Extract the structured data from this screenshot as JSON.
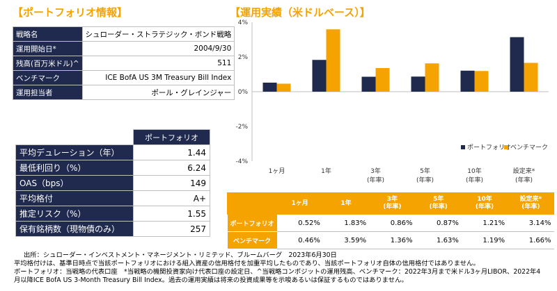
{
  "portfolio_heading": "【ポートフォリオ情報】",
  "chart_heading": "【運用実績（米ドルベース）】",
  "info_rows": [
    {
      "label": "戦略名",
      "value": "シュローダー・ストラテジック・ボンド戦略"
    },
    {
      "label": "運用開始日*",
      "value": "2004/9/30"
    },
    {
      "label": "残高(百万米ドル)^",
      "value": "511"
    },
    {
      "label": "ベンチマーク",
      "value": "ICE BofA US 3M Treasury Bill Index"
    },
    {
      "label": "運用担当者",
      "value": "ポール・グレインジャー"
    }
  ],
  "characteristics": {
    "header": "ポートフォリオ",
    "rows": [
      {
        "label": "平均デュレーション（年）",
        "value": "1.44"
      },
      {
        "label": "最低利回り（%）",
        "value": "6.24"
      },
      {
        "label": "OAS（bps）",
        "value": "149"
      },
      {
        "label": "平均格付",
        "value": "A+"
      },
      {
        "label": "推定リスク（%）",
        "value": "1.55"
      },
      {
        "label": "保有銘柄数（現物債のみ）",
        "value": "257"
      }
    ]
  },
  "chart_data": {
    "type": "bar",
    "categories": [
      [
        "1ヶ月"
      ],
      [
        "1年"
      ],
      [
        "3年",
        "(年率)"
      ],
      [
        "5年",
        "(年率)"
      ],
      [
        "10年",
        "(年率)"
      ],
      [
        "設定来*",
        "(年率)"
      ]
    ],
    "series": [
      {
        "name": "ポートフォリオ",
        "color": "#1F2A4E",
        "values": [
          0.52,
          1.83,
          0.86,
          0.87,
          1.21,
          3.14
        ]
      },
      {
        "name": "ベンチマーク",
        "color": "#F5A300",
        "values": [
          0.46,
          3.59,
          1.36,
          1.63,
          1.19,
          1.66
        ]
      }
    ],
    "yticks": [
      "4%",
      "2%",
      "0%",
      "-2%",
      "-4%"
    ],
    "ylim": [
      -4,
      4
    ],
    "legend": "bottom-right",
    "grid": false
  },
  "perf_table": {
    "columns": [
      [
        "1ヶ月"
      ],
      [
        "1年"
      ],
      [
        "3年",
        "(年率)"
      ],
      [
        "5年",
        "(年率)"
      ],
      [
        "10年",
        "(年率)"
      ],
      [
        "設定来*",
        "(年率)"
      ]
    ],
    "rows": [
      {
        "label": "ポートフォリオ",
        "values": [
          "0.52%",
          "1.83%",
          "0.86%",
          "0.87%",
          "1.21%",
          "3.14%"
        ]
      },
      {
        "label": "ベンチマーク",
        "values": [
          "0.46%",
          "3.59%",
          "1.36%",
          "1.63%",
          "1.19%",
          "1.66%"
        ]
      }
    ]
  },
  "notes": [
    "出所：シュローダー・インベストメント・マネージメント・リミテッド、ブルームバーグ　2023年6月30日",
    "平均格付けは、基準日時点で当該ポートフォリオにおける組入資産の信用格付を加重平均したものであり、当該ポートフォリオ自体の信用格付ではありません。",
    "ポートフォリオ：当戦略の代表口座　*当戦略の機関投資家向け代表口座の設定日、^当戦略コンポジットの運用残高、ベンチマーク：2022年3月まで米ドル3ヶ月LIBOR、2022年4",
    "月以降ICE BofA US 3-Month Treasury Bill Index。過去の運用実績は将来の投資成果等を示唆あるいは保証するものではありません。"
  ]
}
